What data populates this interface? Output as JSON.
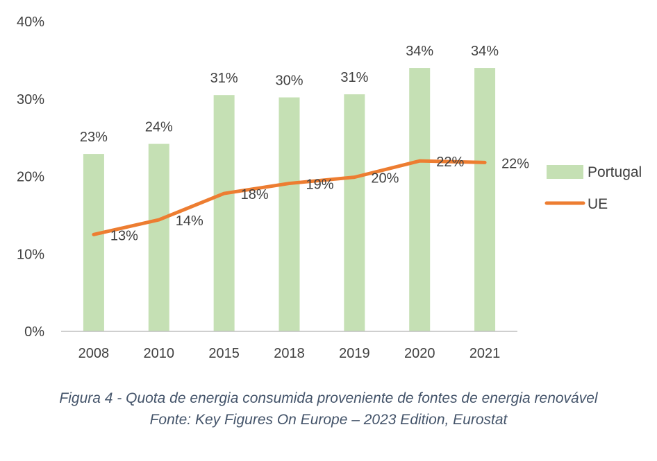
{
  "chart_data": {
    "type": "bar",
    "categories": [
      "2008",
      "2010",
      "2015",
      "2018",
      "2019",
      "2020",
      "2021"
    ],
    "series": [
      {
        "name": "Portugal",
        "kind": "bar",
        "values": [
          22.9,
          24.2,
          30.5,
          30.2,
          30.6,
          34.0,
          34.0
        ],
        "labels": [
          "23%",
          "24%",
          "31%",
          "30%",
          "31%",
          "34%",
          "34%"
        ],
        "color": "#c5e0b4"
      },
      {
        "name": "UE",
        "kind": "line",
        "values": [
          12.5,
          14.4,
          17.8,
          19.1,
          19.9,
          22.0,
          21.8
        ],
        "labels": [
          "13%",
          "14%",
          "18%",
          "19%",
          "20%",
          "22%",
          "22%"
        ],
        "color": "#ed7d31"
      }
    ],
    "ylim": [
      0,
      40
    ],
    "yticks": [
      0,
      10,
      20,
      30,
      40
    ],
    "ytick_labels": [
      "0%",
      "10%",
      "20%",
      "30%",
      "40%"
    ],
    "grid": false,
    "legend_position": "right"
  },
  "caption": {
    "line1": "Figura 4 - Quota de energia consumida proveniente de fontes de energia renovável",
    "line2": "Fonte: Key Figures On Europe – 2023 Edition, Eurostat"
  }
}
